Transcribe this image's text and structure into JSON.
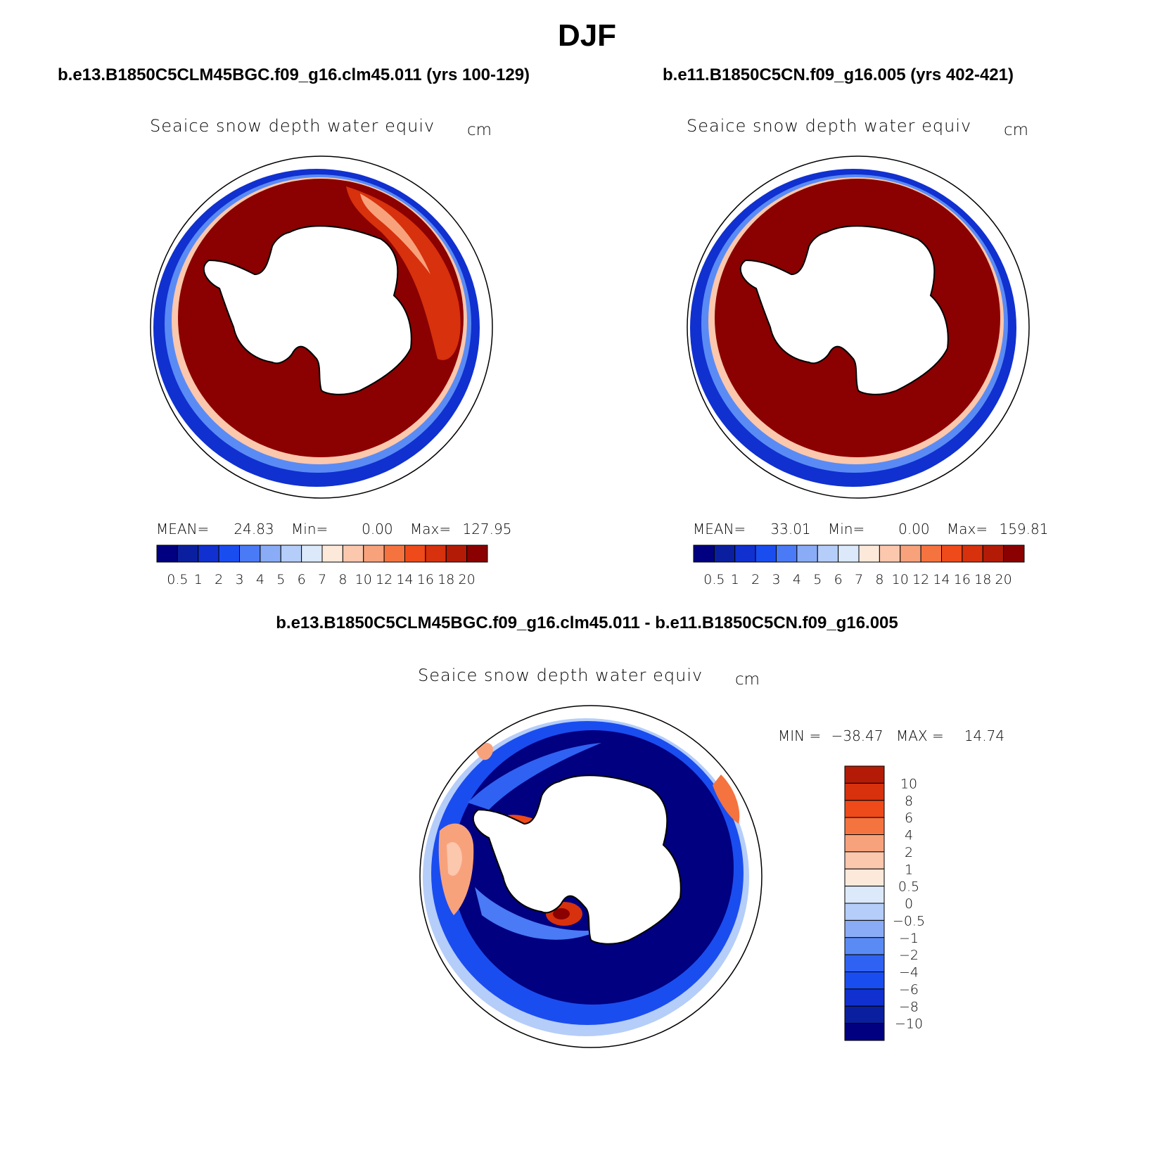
{
  "title": "DJF",
  "colors": {
    "land": "#ffffff",
    "coast": "#000000",
    "ice_full": "#8b0000",
    "abs_levels": [
      "#000080",
      "#0a1fa0",
      "#1030d0",
      "#1a4df0",
      "#4a7af5",
      "#8aacf7",
      "#b5cdf9",
      "#dbe9fb",
      "#fde9da",
      "#fbc7ad",
      "#f8a27c",
      "#f5733f",
      "#ee4a1a",
      "#d7310d",
      "#b31b06",
      "#8b0000"
    ],
    "diff_levels": [
      "#000080",
      "#0a1fa0",
      "#1030d0",
      "#1a4df0",
      "#2f62f2",
      "#5a8bf5",
      "#8aacf7",
      "#b5cdf9",
      "#dbe9fb",
      "#fde9da",
      "#fbc7ad",
      "#f8a27c",
      "#f5733f",
      "#ee4a1a",
      "#d7310d",
      "#b31b06",
      "#8b0000"
    ]
  },
  "chart_data": [
    {
      "type": "heatmap",
      "projection": "south-polar-stereographic",
      "title": "b.e13.B1850C5CLM45BGC.f09_g16.clm45.011 (yrs 100-129)",
      "variable": "Seaice snow depth water equiv",
      "units": "cm",
      "stats": {
        "mean_label": "MEAN=",
        "mean": "24.83",
        "min_label": "Min=",
        "min": "0.00",
        "max_label": "Max=",
        "max": "127.95"
      },
      "colorbar": {
        "orientation": "horizontal",
        "tick_labels": [
          "0.5",
          "1",
          "2",
          "3",
          "4",
          "5",
          "6",
          "7",
          "8",
          "10",
          "12",
          "14",
          "16",
          "18",
          "20"
        ]
      }
    },
    {
      "type": "heatmap",
      "projection": "south-polar-stereographic",
      "title": "b.e11.B1850C5CN.f09_g16.005 (yrs 402-421)",
      "variable": "Seaice snow depth water equiv",
      "units": "cm",
      "stats": {
        "mean_label": "MEAN=",
        "mean": "33.01",
        "min_label": "Min=",
        "min": "0.00",
        "max_label": "Max=",
        "max": "159.81"
      },
      "colorbar": {
        "orientation": "horizontal",
        "tick_labels": [
          "0.5",
          "1",
          "2",
          "3",
          "4",
          "5",
          "6",
          "7",
          "8",
          "10",
          "12",
          "14",
          "16",
          "18",
          "20"
        ]
      }
    },
    {
      "type": "heatmap",
      "projection": "south-polar-stereographic",
      "title": "b.e13.B1850C5CLM45BGC.f09_g16.clm45.011 - b.e11.B1850C5CN.f09_g16.005",
      "variable": "Seaice snow depth water equiv",
      "units": "cm",
      "stats": {
        "min_label": "MIN =",
        "min": "−38.47",
        "max_label": "MAX =",
        "max": "14.74"
      },
      "colorbar": {
        "orientation": "vertical",
        "tick_labels": [
          "10",
          "8",
          "6",
          "4",
          "2",
          "1",
          "0.5",
          "0",
          "−0.5",
          "−1",
          "−2",
          "−4",
          "−6",
          "−8",
          "−10"
        ]
      }
    }
  ]
}
